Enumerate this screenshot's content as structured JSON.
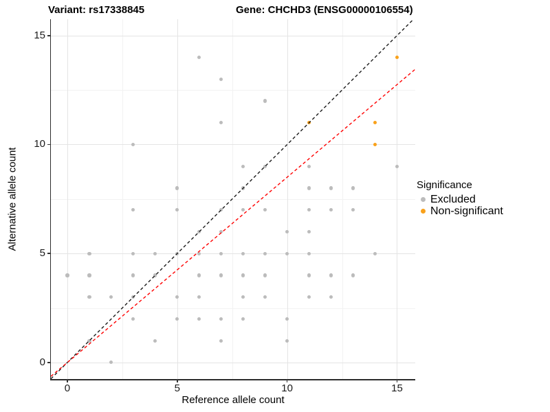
{
  "titles": {
    "left": "Variant: rs17338845",
    "right": "Gene: CHCHD3 (ENSG00000106554)"
  },
  "axes": {
    "x_label": "Reference allele count",
    "y_label": "Alternative allele count",
    "x_ticks": [
      0,
      5,
      10,
      15
    ],
    "y_ticks": [
      0,
      5,
      10,
      15
    ],
    "x_minor": [
      2.5,
      7.5,
      12.5
    ],
    "y_minor": [
      2.5,
      7.5,
      12.5
    ]
  },
  "legend": {
    "title": "Significance",
    "items": [
      {
        "label": "Excluded",
        "color": "#bcbcbc"
      },
      {
        "label": "Non-significant",
        "color": "#f9a11b"
      }
    ]
  },
  "chart_data": {
    "type": "scatter",
    "title_left": "Variant: rs17338845",
    "title_right": "Gene: CHCHD3 (ENSG00000106554)",
    "xlabel": "Reference allele count",
    "ylabel": "Alternative allele count",
    "xlim": [
      -0.75,
      15.83
    ],
    "ylim": [
      -0.76,
      15.75
    ],
    "grid": "on",
    "legend_position": "right",
    "series": [
      {
        "name": "Excluded",
        "color": "#bcbcbc",
        "points": [
          [
            2,
            0
          ],
          [
            1,
            1
          ],
          [
            4,
            1
          ],
          [
            7,
            1
          ],
          [
            10,
            1
          ],
          [
            3,
            2
          ],
          [
            5,
            2
          ],
          [
            6,
            2
          ],
          [
            7,
            2
          ],
          [
            8,
            2
          ],
          [
            10,
            2
          ],
          [
            1,
            3
          ],
          [
            2,
            3
          ],
          [
            3,
            3
          ],
          [
            5,
            3
          ],
          [
            6,
            3
          ],
          [
            8,
            3
          ],
          [
            9,
            3
          ],
          [
            11,
            3
          ],
          [
            12,
            3
          ],
          [
            0,
            4
          ],
          [
            1,
            4
          ],
          [
            3,
            4
          ],
          [
            4,
            4
          ],
          [
            6,
            4
          ],
          [
            7,
            4
          ],
          [
            8,
            4
          ],
          [
            9,
            4
          ],
          [
            11,
            4
          ],
          [
            12,
            4
          ],
          [
            13,
            4
          ],
          [
            1,
            5
          ],
          [
            3,
            5
          ],
          [
            4,
            5
          ],
          [
            5,
            5
          ],
          [
            6,
            5
          ],
          [
            7,
            5
          ],
          [
            8,
            5
          ],
          [
            9,
            5
          ],
          [
            10,
            5
          ],
          [
            11,
            5
          ],
          [
            14,
            5
          ],
          [
            6,
            6
          ],
          [
            7,
            6
          ],
          [
            10,
            6
          ],
          [
            11,
            6
          ],
          [
            3,
            7
          ],
          [
            5,
            7
          ],
          [
            7,
            7
          ],
          [
            8,
            7
          ],
          [
            9,
            7
          ],
          [
            11,
            7
          ],
          [
            12,
            7
          ],
          [
            13,
            7
          ],
          [
            5,
            8
          ],
          [
            8,
            8
          ],
          [
            11,
            8
          ],
          [
            12,
            8
          ],
          [
            13,
            8
          ],
          [
            8,
            9
          ],
          [
            9,
            9
          ],
          [
            11,
            9
          ],
          [
            15,
            9
          ],
          [
            3,
            10
          ],
          [
            7,
            11
          ],
          [
            9,
            12
          ],
          [
            7,
            13
          ],
          [
            6,
            14
          ]
        ]
      },
      {
        "name": "Non-significant",
        "color": "#f9a11b",
        "points": [
          [
            14,
            10
          ],
          [
            11,
            11
          ],
          [
            14,
            11
          ],
          [
            15,
            14
          ]
        ]
      }
    ],
    "lines": [
      {
        "name": "identity-line",
        "slope": 1,
        "intercept": 0,
        "color": "#1a1a1a",
        "dash": "4.5,3.5"
      },
      {
        "name": "fitted-line",
        "slope": 0.85,
        "intercept": 0,
        "color": "#ff0000",
        "dash": "4.5,3.5"
      }
    ]
  }
}
